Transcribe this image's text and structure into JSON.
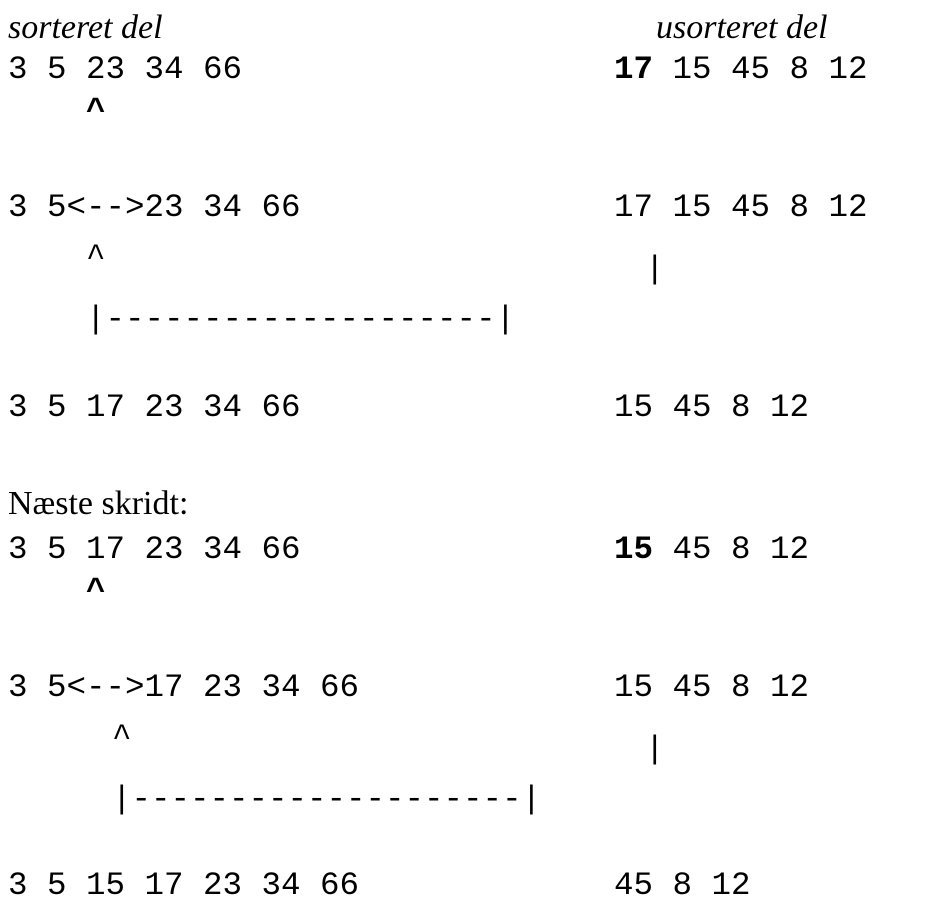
{
  "headings": {
    "sorted_label": "sorteret del",
    "unsorted_label": "usorteret del",
    "next_step": "Næste skridt:"
  },
  "step1": {
    "sorted": "3 5 23 34 66",
    "current": "17",
    "rest": "15 45 8 12",
    "pointer": "^"
  },
  "step2": {
    "sorted": "3 5<-->23 34 66",
    "unsorted": "17 15 45 8 12",
    "caret": "^",
    "pipe": "|",
    "bracket": "|--------------------|"
  },
  "step3": {
    "sorted": "3 5 17 23 34 66",
    "unsorted": "15 45 8 12"
  },
  "step4": {
    "sorted": "3 5 17 23 34 66",
    "current": "15",
    "rest": "45 8 12",
    "pointer": "^"
  },
  "step5": {
    "sorted": "3 5<-->17 23 34 66",
    "unsorted": "15 45 8 12",
    "caret": "^",
    "pipe": "|",
    "bracket": "|--------------------|"
  },
  "step6": {
    "sorted": "3 5 15 17 23 34 66",
    "unsorted": "45 8 12"
  }
}
